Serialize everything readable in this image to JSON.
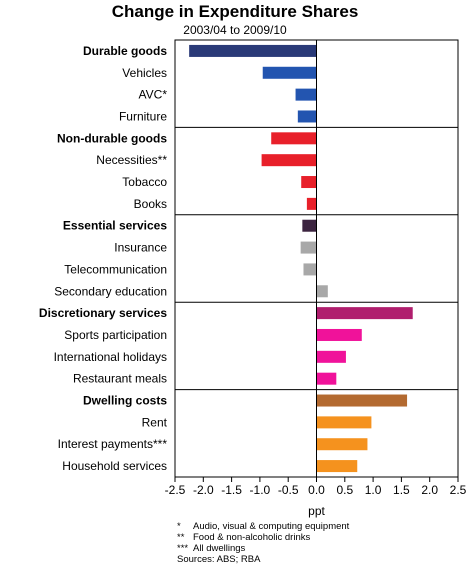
{
  "chart_data": {
    "type": "bar",
    "orientation": "horizontal",
    "title": "Change in Expenditure Shares",
    "subtitle": "2003/04 to 2009/10",
    "xlabel": "ppt",
    "xlim": [
      -2.5,
      2.5
    ],
    "xticks": [
      "-2.5",
      "-2.0",
      "-1.5",
      "-1.0",
      "-0.5",
      "0.0",
      "0.5",
      "1.0",
      "1.5",
      "2.0",
      "2.5"
    ],
    "groups": [
      {
        "name": "Durable goods",
        "value": -2.25,
        "color": "#2a3a78",
        "items": [
          {
            "name": "Vehicles",
            "value": -0.95,
            "color": "#2355b0"
          },
          {
            "name": "AVC*",
            "value": -0.37,
            "color": "#2355b0"
          },
          {
            "name": "Furniture",
            "value": -0.33,
            "color": "#2355b0"
          }
        ]
      },
      {
        "name": "Non-durable goods",
        "value": -0.8,
        "color": "#e8202a",
        "items": [
          {
            "name": "Necessities**",
            "value": -0.97,
            "color": "#e8202a"
          },
          {
            "name": "Tobacco",
            "value": -0.27,
            "color": "#e8202a"
          },
          {
            "name": "Books",
            "value": -0.17,
            "color": "#e8202a"
          }
        ]
      },
      {
        "name": "Essential services",
        "value": -0.25,
        "color": "#3c2440",
        "items": [
          {
            "name": "Insurance",
            "value": -0.28,
            "color": "#a8a8a8"
          },
          {
            "name": "Telecommunication",
            "value": -0.23,
            "color": "#a8a8a8"
          },
          {
            "name": "Secondary education",
            "value": 0.2,
            "color": "#a8a8a8"
          }
        ]
      },
      {
        "name": "Discretionary services",
        "value": 1.7,
        "color": "#b01e6e",
        "items": [
          {
            "name": "Sports participation",
            "value": 0.8,
            "color": "#f0129a"
          },
          {
            "name": "International holidays",
            "value": 0.52,
            "color": "#f0129a"
          },
          {
            "name": "Restaurant meals",
            "value": 0.35,
            "color": "#f0129a"
          }
        ]
      },
      {
        "name": "Dwelling costs",
        "value": 1.6,
        "color": "#b36a30",
        "items": [
          {
            "name": "Rent",
            "value": 0.97,
            "color": "#f5921e"
          },
          {
            "name": "Interest payments***",
            "value": 0.9,
            "color": "#f5921e"
          },
          {
            "name": "Household services",
            "value": 0.72,
            "color": "#f5921e"
          }
        ]
      }
    ]
  },
  "footnotes": [
    {
      "mark": "*",
      "text": "Audio, visual & computing equipment"
    },
    {
      "mark": "**",
      "text": "Food & non-alcoholic drinks"
    },
    {
      "mark": "***",
      "text": "All dwellings"
    }
  ],
  "sources": "Sources: ABS; RBA"
}
